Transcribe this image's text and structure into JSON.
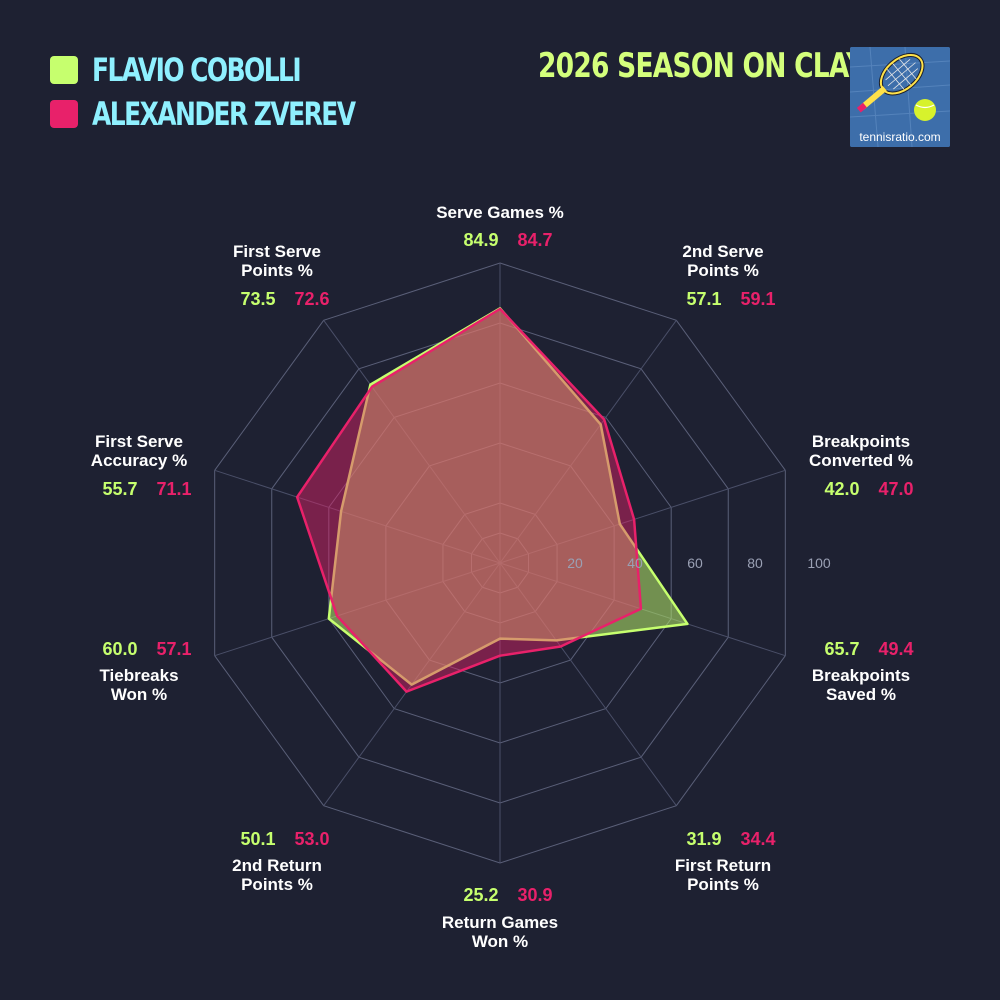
{
  "legend": [
    {
      "name": "FLAVIO COBOLLI",
      "color": "#c6ff6e"
    },
    {
      "name": "ALEXANDER ZVEREV",
      "color": "#e8216a"
    }
  ],
  "season_title": "2026 SEASON ON CLAY",
  "logo": {
    "text": "tennisratio.com",
    "icon": "tennis-racket-ball-icon"
  },
  "chart_data": {
    "type": "radar",
    "title": "2026 SEASON ON CLAY",
    "range": [
      0,
      100
    ],
    "grid": true,
    "ticks": [
      "20",
      "40",
      "60",
      "80",
      "100"
    ],
    "categories": [
      [
        "Serve Games %"
      ],
      [
        "2nd Serve",
        "Points %"
      ],
      [
        "Breakpoints",
        "Converted %"
      ],
      [
        "Breakpoints",
        "Saved %"
      ],
      [
        "First Return",
        "Points %"
      ],
      [
        "Return Games",
        "Won %"
      ],
      [
        "2nd Return",
        "Points %"
      ],
      [
        "Tiebreaks",
        "Won %"
      ],
      [
        "First Serve",
        "Accuracy %"
      ],
      [
        "First Serve",
        "Points %"
      ]
    ],
    "series": [
      {
        "name": "FLAVIO COBOLLI",
        "color": "#c6ff6e",
        "values": [
          84.9,
          57.1,
          42.0,
          65.7,
          31.9,
          25.2,
          50.1,
          60.0,
          55.7,
          73.5
        ],
        "labels": [
          "84.9",
          "57.1",
          "42.0",
          "65.7",
          "31.9",
          "25.2",
          "50.1",
          "60.0",
          "55.7",
          "73.5"
        ]
      },
      {
        "name": "ALEXANDER ZVEREV",
        "color": "#e8216a",
        "values": [
          84.7,
          59.1,
          47.0,
          49.4,
          34.4,
          30.9,
          53.0,
          57.1,
          71.1,
          72.6
        ],
        "labels": [
          "84.7",
          "59.1",
          "47.0",
          "49.4",
          "34.4",
          "30.9",
          "53.0",
          "57.1",
          "71.1",
          "72.6"
        ]
      }
    ]
  }
}
